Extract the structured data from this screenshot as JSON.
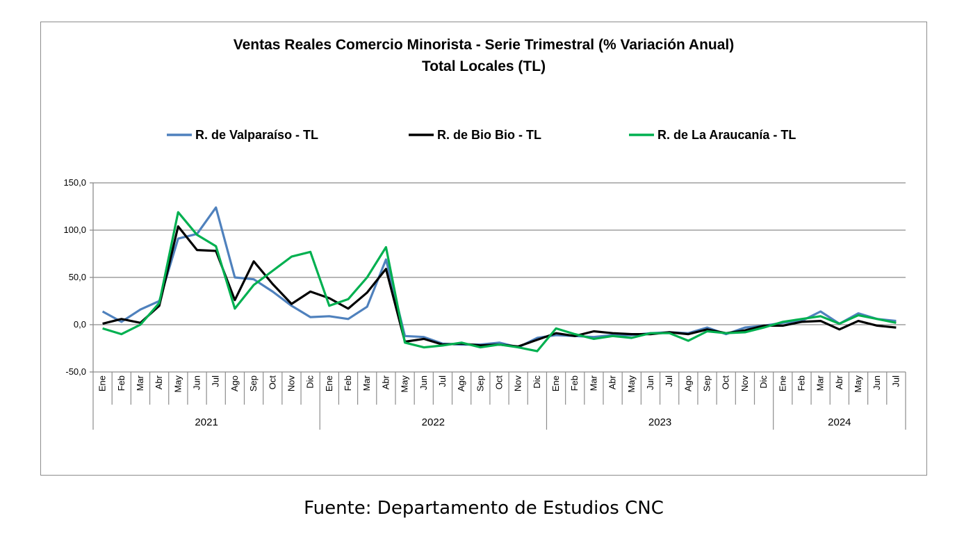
{
  "source": "Fuente: Departamento de Estudios CNC",
  "chart_data": {
    "type": "line",
    "title": "Ventas Reales Comercio Minorista - Serie Trimestral (% Variación Anual)",
    "subtitle": "Total Locales (TL)",
    "ylim": [
      -50,
      150
    ],
    "yticks": [
      "150,0",
      "100,0",
      "50,0",
      "0,0",
      "-50,0"
    ],
    "ytick_values": [
      150,
      100,
      50,
      0,
      -50
    ],
    "grid": true,
    "legend_position": "top",
    "categories": [
      "Ene",
      "Feb",
      "Mar",
      "Abr",
      "May",
      "Jun",
      "Jul",
      "Ago",
      "Sep",
      "Oct",
      "Nov",
      "Dic",
      "Ene",
      "Feb",
      "Mar",
      "Abr",
      "May",
      "Jun",
      "Jul",
      "Ago",
      "Sep",
      "Oct",
      "Nov",
      "Dic",
      "Ene",
      "Feb",
      "Mar",
      "Abr",
      "May",
      "Jun",
      "Jul",
      "Ago",
      "Sep",
      "Oct",
      "Nov",
      "Dic",
      "Ene",
      "Feb",
      "Mar",
      "Abr",
      "May",
      "Jun",
      "Jul"
    ],
    "years": [
      {
        "label": "2021",
        "count": 12
      },
      {
        "label": "2022",
        "count": 12
      },
      {
        "label": "2023",
        "count": 12
      },
      {
        "label": "2024",
        "count": 7
      }
    ],
    "series": [
      {
        "name": "R. de Valparaíso - TL",
        "color": "#4F81BD",
        "values": [
          14,
          3,
          16,
          25,
          91,
          96,
          124,
          50,
          48,
          35,
          20,
          8,
          9,
          6,
          19,
          69,
          -12,
          -13,
          -20,
          -21,
          -21,
          -19,
          -24,
          -14,
          -11,
          -12,
          -13,
          -11,
          -11,
          -9,
          -8,
          -9,
          -3,
          -10,
          -3,
          -1,
          2,
          4,
          14,
          1,
          12,
          6,
          4
        ]
      },
      {
        "name": "R. de Bio Bio - TL",
        "color": "#000000",
        "values": [
          1,
          6,
          2,
          20,
          104,
          79,
          78,
          26,
          67,
          43,
          22,
          35,
          28,
          17,
          34,
          59,
          -18,
          -15,
          -21,
          -20,
          -22,
          -21,
          -23,
          -16,
          -9,
          -12,
          -7,
          -9,
          -10,
          -10,
          -8,
          -10,
          -5,
          -9,
          -6,
          -1,
          -1,
          3,
          4,
          -5,
          4,
          -1,
          -3
        ]
      },
      {
        "name": "R. de La Araucanía - TL",
        "color": "#00B050",
        "values": [
          -4,
          -10,
          0,
          23,
          119,
          95,
          83,
          17,
          42,
          57,
          72,
          77,
          20,
          27,
          50,
          82,
          -19,
          -24,
          -22,
          -19,
          -24,
          -21,
          -24,
          -28,
          -4,
          -10,
          -15,
          -12,
          -14,
          -9,
          -9,
          -17,
          -7,
          -9,
          -8,
          -3,
          3,
          6,
          9,
          1,
          10,
          6,
          2
        ]
      }
    ]
  }
}
